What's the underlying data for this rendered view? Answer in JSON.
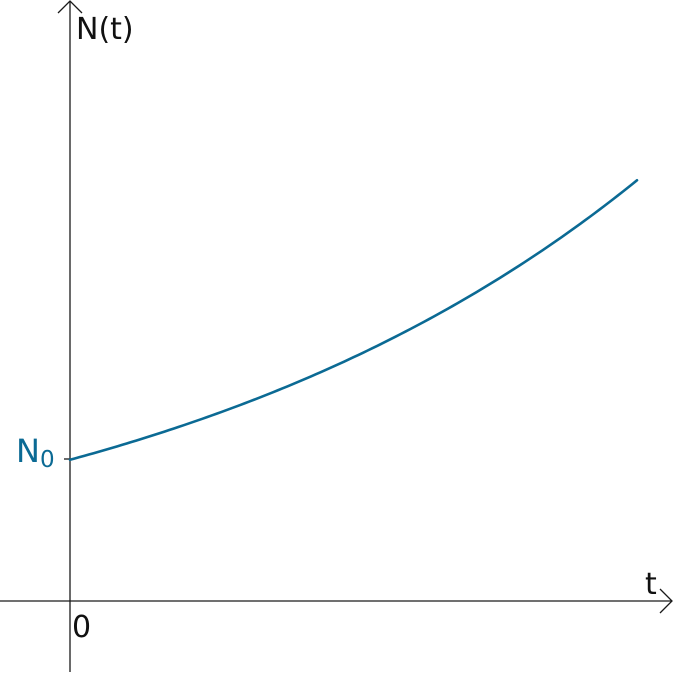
{
  "chart_data": {
    "type": "line",
    "title": "",
    "xlabel": "t",
    "ylabel": "N(t)",
    "origin_label": "0",
    "y_intercept_label": {
      "main": "N",
      "sub": "0"
    },
    "xlim": [
      0,
      1
    ],
    "ylim": [
      0,
      1
    ],
    "grid": false,
    "series": [
      {
        "color": "#0b6a94",
        "x": [
          0,
          0.1,
          0.2,
          0.3,
          0.4,
          0.5,
          0.6,
          0.7,
          0.8,
          0.9,
          1.0
        ],
        "y": [
          0.235,
          0.262,
          0.291,
          0.324,
          0.361,
          0.402,
          0.449,
          0.501,
          0.56,
          0.626,
          0.7
        ]
      }
    ]
  },
  "colors": {
    "axis": "#1a1a1a",
    "curve": "#0b6a94",
    "n0_label": "#0b6a94"
  }
}
